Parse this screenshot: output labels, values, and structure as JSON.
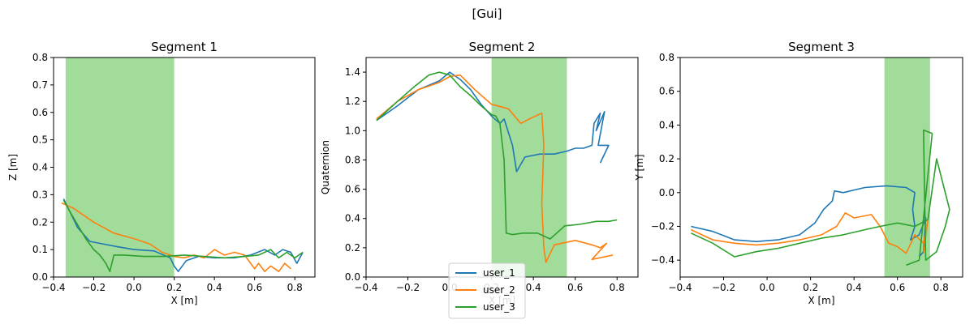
{
  "suptitle": "[Gui]",
  "legend": {
    "placement": "bottom-center",
    "entries": [
      "user_1",
      "user_2",
      "user_3"
    ]
  },
  "colors": {
    "user_1": "#1f77b4",
    "user_2": "#ff7f0e",
    "user_3": "#2ca02c",
    "band": "#a1dc9a"
  },
  "chart_data": [
    {
      "type": "line",
      "title": "Segment 1",
      "xlabel": "X [m]",
      "ylabel": "Z [m]",
      "xlim": [
        -0.4,
        0.9
      ],
      "ylim": [
        0.0,
        0.8
      ],
      "xticks": [
        -0.4,
        -0.2,
        0.0,
        0.2,
        0.4,
        0.6,
        0.8
      ],
      "xticklabels": [
        "−0.4",
        "−0.2",
        "0.0",
        "0.2",
        "0.4",
        "0.6",
        "0.8"
      ],
      "yticks": [
        0.0,
        0.1,
        0.2,
        0.3,
        0.4,
        0.5,
        0.6,
        0.7,
        0.8
      ],
      "yticklabels": [
        "0.0",
        "0.1",
        "0.2",
        "0.3",
        "0.4",
        "0.5",
        "0.6",
        "0.7",
        "0.8"
      ],
      "band": [
        -0.34,
        0.2
      ],
      "series": [
        {
          "name": "user_1",
          "x": [
            -0.35,
            -0.32,
            -0.28,
            -0.22,
            -0.15,
            -0.08,
            0.0,
            0.1,
            0.18,
            0.2,
            0.22,
            0.26,
            0.32,
            0.4,
            0.5,
            0.58,
            0.65,
            0.7,
            0.74,
            0.78,
            0.81,
            0.84
          ],
          "y": [
            0.285,
            0.24,
            0.18,
            0.13,
            0.12,
            0.11,
            0.1,
            0.095,
            0.07,
            0.04,
            0.02,
            0.06,
            0.075,
            0.07,
            0.07,
            0.08,
            0.1,
            0.08,
            0.1,
            0.09,
            0.05,
            0.09
          ]
        },
        {
          "name": "user_2",
          "x": [
            -0.36,
            -0.3,
            -0.2,
            -0.1,
            0.0,
            0.08,
            0.14,
            0.18,
            0.2,
            0.25,
            0.3,
            0.35,
            0.4,
            0.45,
            0.5,
            0.55,
            0.6,
            0.62,
            0.65,
            0.68,
            0.72,
            0.75,
            0.78
          ],
          "y": [
            0.27,
            0.25,
            0.2,
            0.16,
            0.14,
            0.12,
            0.09,
            0.08,
            0.075,
            0.07,
            0.08,
            0.07,
            0.1,
            0.08,
            0.09,
            0.08,
            0.03,
            0.05,
            0.02,
            0.04,
            0.02,
            0.05,
            0.03
          ]
        },
        {
          "name": "user_3",
          "x": [
            -0.35,
            -0.32,
            -0.28,
            -0.24,
            -0.2,
            -0.17,
            -0.14,
            -0.12,
            -0.1,
            -0.05,
            0.05,
            0.15,
            0.25,
            0.35,
            0.45,
            0.55,
            0.62,
            0.68,
            0.72,
            0.76,
            0.8,
            0.84
          ],
          "y": [
            0.28,
            0.24,
            0.19,
            0.14,
            0.1,
            0.08,
            0.05,
            0.02,
            0.08,
            0.08,
            0.075,
            0.075,
            0.08,
            0.075,
            0.07,
            0.075,
            0.08,
            0.1,
            0.07,
            0.09,
            0.07,
            0.09
          ]
        }
      ]
    },
    {
      "type": "line",
      "title": "Segment 2",
      "xlabel": "X [m]",
      "ylabel": "Quaternion",
      "xlim": [
        -0.4,
        0.9
      ],
      "ylim": [
        0.0,
        1.5
      ],
      "xticks": [
        -0.4,
        -0.2,
        0.0,
        0.2,
        0.4,
        0.6,
        0.8
      ],
      "xticklabels": [
        "−0.4",
        "−0.2",
        "0.0",
        "0.2",
        "0.4",
        "0.6",
        "0.8"
      ],
      "yticks": [
        0.0,
        0.2,
        0.4,
        0.6,
        0.8,
        1.0,
        1.2,
        1.4
      ],
      "yticklabels": [
        "0.0",
        "0.2",
        "0.4",
        "0.6",
        "0.8",
        "1.0",
        "1.2",
        "1.4"
      ],
      "band": [
        0.2,
        0.56
      ],
      "series": [
        {
          "name": "user_1",
          "x": [
            -0.35,
            -0.25,
            -0.15,
            -0.05,
            0.0,
            0.05,
            0.1,
            0.15,
            0.2,
            0.24,
            0.26,
            0.3,
            0.32,
            0.36,
            0.43,
            0.5,
            0.56,
            0.6,
            0.64,
            0.68,
            0.69,
            0.72,
            0.7,
            0.74,
            0.71,
            0.76,
            0.72
          ],
          "y": [
            1.07,
            1.17,
            1.28,
            1.34,
            1.4,
            1.35,
            1.28,
            1.18,
            1.1,
            1.05,
            1.08,
            0.9,
            0.72,
            0.82,
            0.84,
            0.84,
            0.86,
            0.88,
            0.88,
            0.9,
            1.05,
            1.12,
            1.0,
            1.13,
            0.9,
            0.9,
            0.78
          ]
        },
        {
          "name": "user_2",
          "x": [
            -0.35,
            -0.25,
            -0.15,
            -0.05,
            0.0,
            0.05,
            0.12,
            0.2,
            0.28,
            0.34,
            0.38,
            0.44,
            0.45,
            0.44,
            0.45,
            0.46,
            0.5,
            0.6,
            0.68,
            0.72,
            0.75,
            0.68,
            0.78
          ],
          "y": [
            1.08,
            1.2,
            1.28,
            1.33,
            1.37,
            1.38,
            1.28,
            1.18,
            1.15,
            1.05,
            1.08,
            1.12,
            0.9,
            0.5,
            0.2,
            0.1,
            0.22,
            0.25,
            0.22,
            0.2,
            0.23,
            0.12,
            0.15
          ]
        },
        {
          "name": "user_3",
          "x": [
            -0.35,
            -0.25,
            -0.17,
            -0.1,
            -0.05,
            0.0,
            0.05,
            0.1,
            0.15,
            0.2,
            0.22,
            0.24,
            0.26,
            0.27,
            0.3,
            0.35,
            0.42,
            0.48,
            0.55,
            0.62,
            0.7,
            0.76,
            0.8
          ],
          "y": [
            1.07,
            1.2,
            1.3,
            1.38,
            1.4,
            1.38,
            1.3,
            1.24,
            1.17,
            1.11,
            1.1,
            1.05,
            0.8,
            0.3,
            0.29,
            0.3,
            0.3,
            0.26,
            0.35,
            0.36,
            0.38,
            0.38,
            0.39
          ]
        }
      ]
    },
    {
      "type": "line",
      "title": "Segment 3",
      "xlabel": "X [m]",
      "ylabel": "Y [m]",
      "xlim": [
        -0.4,
        0.9
      ],
      "ylim": [
        -0.5,
        0.8
      ],
      "xticks": [
        -0.4,
        -0.2,
        0.0,
        0.2,
        0.4,
        0.6,
        0.8
      ],
      "xticklabels": [
        "−0.4",
        "−0.2",
        "0.0",
        "0.2",
        "0.4",
        "0.6",
        "0.8"
      ],
      "yticks": [
        -0.4,
        -0.2,
        0.0,
        0.2,
        0.4,
        0.6,
        0.8
      ],
      "yticklabels": [
        "−0.4",
        "−0.2",
        "0.0",
        "0.2",
        "0.4",
        "0.6",
        "0.8"
      ],
      "band": [
        0.54,
        0.75
      ],
      "series": [
        {
          "name": "user_1",
          "x": [
            -0.35,
            -0.25,
            -0.15,
            -0.05,
            0.05,
            0.15,
            0.22,
            0.26,
            0.3,
            0.31,
            0.35,
            0.45,
            0.55,
            0.64,
            0.68,
            0.67,
            0.68,
            0.66,
            0.7,
            0.73,
            0.72,
            0.7
          ],
          "y": [
            -0.2,
            -0.23,
            -0.28,
            -0.29,
            -0.28,
            -0.25,
            -0.18,
            -0.1,
            -0.05,
            0.01,
            0.0,
            0.03,
            0.04,
            0.03,
            0.0,
            -0.1,
            -0.2,
            -0.28,
            -0.25,
            -0.15,
            -0.35,
            -0.38
          ]
        },
        {
          "name": "user_2",
          "x": [
            -0.35,
            -0.25,
            -0.15,
            -0.05,
            0.05,
            0.15,
            0.25,
            0.32,
            0.36,
            0.4,
            0.44,
            0.48,
            0.52,
            0.56,
            0.6,
            0.64,
            0.68,
            0.72,
            0.74,
            0.72
          ],
          "y": [
            -0.22,
            -0.28,
            -0.3,
            -0.31,
            -0.3,
            -0.28,
            -0.25,
            -0.2,
            -0.12,
            -0.15,
            -0.14,
            -0.13,
            -0.2,
            -0.3,
            -0.32,
            -0.36,
            -0.25,
            -0.3,
            -0.16,
            -0.36
          ]
        },
        {
          "name": "user_3",
          "x": [
            -0.35,
            -0.25,
            -0.15,
            -0.05,
            0.05,
            0.15,
            0.25,
            0.35,
            0.45,
            0.52,
            0.56,
            0.6,
            0.68,
            0.74,
            0.78,
            0.82,
            0.84,
            0.82,
            0.78,
            0.73,
            0.72,
            0.76,
            0.7,
            0.64
          ],
          "y": [
            -0.24,
            -0.3,
            -0.38,
            -0.35,
            -0.33,
            -0.3,
            -0.27,
            -0.25,
            -0.22,
            -0.2,
            -0.19,
            -0.18,
            -0.2,
            -0.16,
            0.2,
            0.0,
            -0.1,
            -0.2,
            -0.35,
            -0.4,
            0.37,
            0.35,
            -0.4,
            -0.43
          ]
        }
      ]
    }
  ]
}
